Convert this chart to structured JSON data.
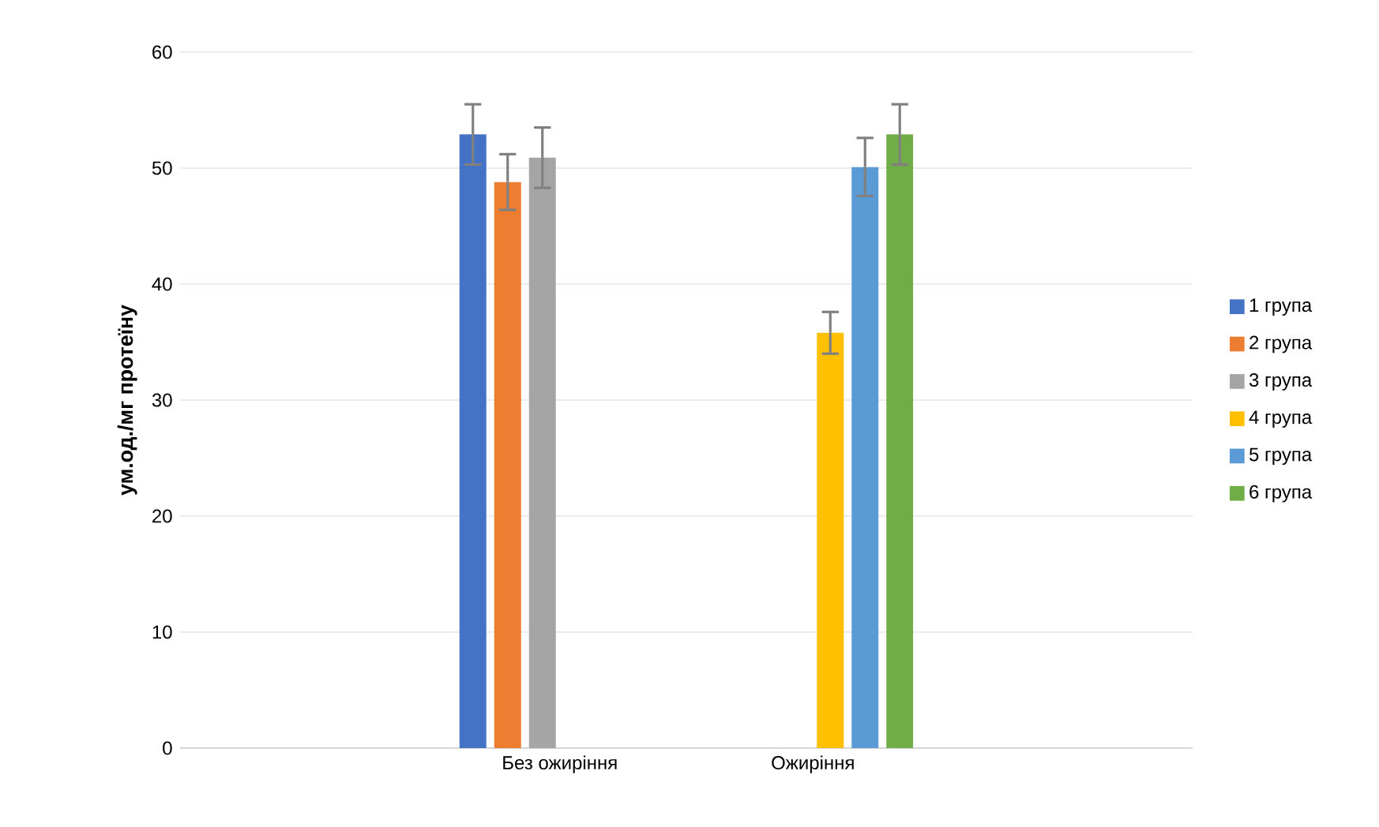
{
  "chart_data": {
    "type": "bar",
    "ylabel": "ум.од./мг протеїну",
    "categories": [
      null,
      "Без ожиріння",
      "Ожиріння",
      null
    ],
    "series": [
      {
        "name": "1 група",
        "color": "#4472c4",
        "values": [
          null,
          52.9,
          null,
          null
        ],
        "errors": [
          null,
          2.6,
          null,
          null
        ]
      },
      {
        "name": "2 група",
        "color": "#ed7d31",
        "values": [
          null,
          48.8,
          null,
          null
        ],
        "errors": [
          null,
          2.4,
          null,
          null
        ]
      },
      {
        "name": "3 група",
        "color": "#a5a5a5",
        "values": [
          null,
          50.9,
          null,
          null
        ],
        "errors": [
          null,
          2.6,
          null,
          null
        ]
      },
      {
        "name": "4 група",
        "color": "#ffc000",
        "values": [
          null,
          null,
          35.8,
          null
        ],
        "errors": [
          null,
          null,
          1.8,
          null
        ]
      },
      {
        "name": "5 група",
        "color": "#5b9bd5",
        "values": [
          null,
          null,
          50.1,
          null
        ],
        "errors": [
          null,
          null,
          2.5,
          null
        ]
      },
      {
        "name": "6 група",
        "color": "#70ad47",
        "values": [
          null,
          null,
          52.9,
          null
        ],
        "errors": [
          null,
          null,
          2.6,
          null
        ]
      }
    ],
    "ylim": [
      0,
      60
    ],
    "yticks": [
      0,
      10,
      20,
      30,
      40,
      50,
      60
    ],
    "grid": "y",
    "legend": "right"
  }
}
